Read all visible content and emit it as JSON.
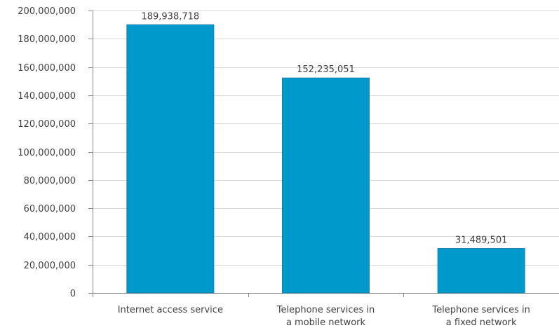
{
  "chart_data": {
    "type": "bar",
    "categories": [
      [
        "Internet access service"
      ],
      [
        "Telephone services in",
        "a mobile network"
      ],
      [
        "Telephone services in",
        "a fixed network"
      ]
    ],
    "values": [
      189938718,
      152235051,
      31489501
    ],
    "data_labels": [
      "189,938,718",
      "152,235,051",
      "31,489,501"
    ],
    "y_ticks": [
      0,
      20000000,
      40000000,
      60000000,
      80000000,
      100000000,
      120000000,
      140000000,
      160000000,
      180000000,
      200000000
    ],
    "y_tick_labels": [
      "0",
      "20,000,000",
      "40,000,000",
      "60,000,000",
      "80,000,000",
      "100,000,000",
      "120,000,000",
      "140,000,000",
      "160,000,000",
      "180,000,000",
      "200,000,000"
    ],
    "ylim": [
      0,
      200000000
    ],
    "grid": true,
    "legend": "none",
    "title": "",
    "xlabel": "",
    "ylabel": "",
    "colors": {
      "bar": "#0099cc",
      "bar_edge": "#1a7fa8",
      "grid": "#d9d9d9",
      "axis": "#8c8c8c",
      "text": "#404040"
    }
  }
}
